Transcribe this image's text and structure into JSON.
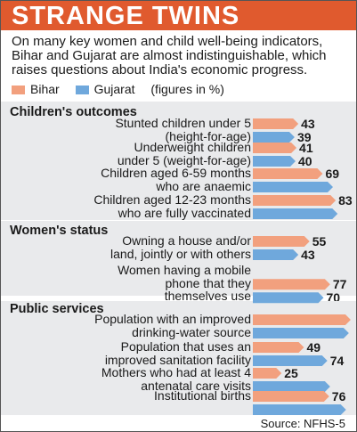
{
  "title": "STRANGE TWINS",
  "subtitle": "On many key women and child well-being indicators, Bihar and Gujarat are almost indistinguishable, which raises questions about India's economic progress.",
  "legend": {
    "bihar": "Bihar",
    "gujarat": "Gujarat",
    "note": "(figures in %)"
  },
  "source": "Source: NFHS-5",
  "colors": {
    "bihar": "#f2a07e",
    "gujarat": "#6fa8dc",
    "header": "#e05a2e",
    "band": "#e9eaec"
  },
  "chart_data": {
    "type": "bar",
    "unit": "%",
    "series_names": [
      "Bihar",
      "Gujarat"
    ],
    "sections": [
      {
        "title": "Children's outcomes",
        "items": [
          {
            "label": [
              "Stunted children under 5",
              "(height-for-age)"
            ],
            "bihar": 43,
            "gujarat": 39
          },
          {
            "label": [
              "Underweight children",
              "under 5 (weight-for-age)"
            ],
            "bihar": 41,
            "gujarat": 40
          },
          {
            "label": [
              "Children aged 6-59 months",
              "who are anaemic"
            ],
            "bihar": 69,
            "gujarat": 80
          },
          {
            "label": [
              "Children aged 12-23 months",
              "who are fully vaccinated"
            ],
            "bihar": 83,
            "gujarat": 85
          }
        ]
      },
      {
        "title": "Women's status",
        "items": [
          {
            "label": [
              "Owning a house and/or",
              "land, jointly or with others"
            ],
            "bihar": 55,
            "gujarat": 43
          },
          {
            "label": [
              "Women having a mobile",
              "phone that they",
              "themselves use"
            ],
            "bihar": 77,
            "gujarat": 70
          }
        ]
      },
      {
        "title": "Public services",
        "items": [
          {
            "label": [
              "Population with an improved",
              "drinking-water source"
            ],
            "bihar": 99,
            "gujarat": 97
          },
          {
            "label": [
              "Population that uses an",
              "improved sanitation facility"
            ],
            "bihar": 49,
            "gujarat": 74
          },
          {
            "label": [
              "Mothers who had at least 4",
              "antenatal care visits"
            ],
            "bihar": 25,
            "gujarat": 77
          },
          {
            "label": [
              "Institutional births"
            ],
            "bihar": 76,
            "gujarat": 94
          }
        ]
      }
    ]
  }
}
